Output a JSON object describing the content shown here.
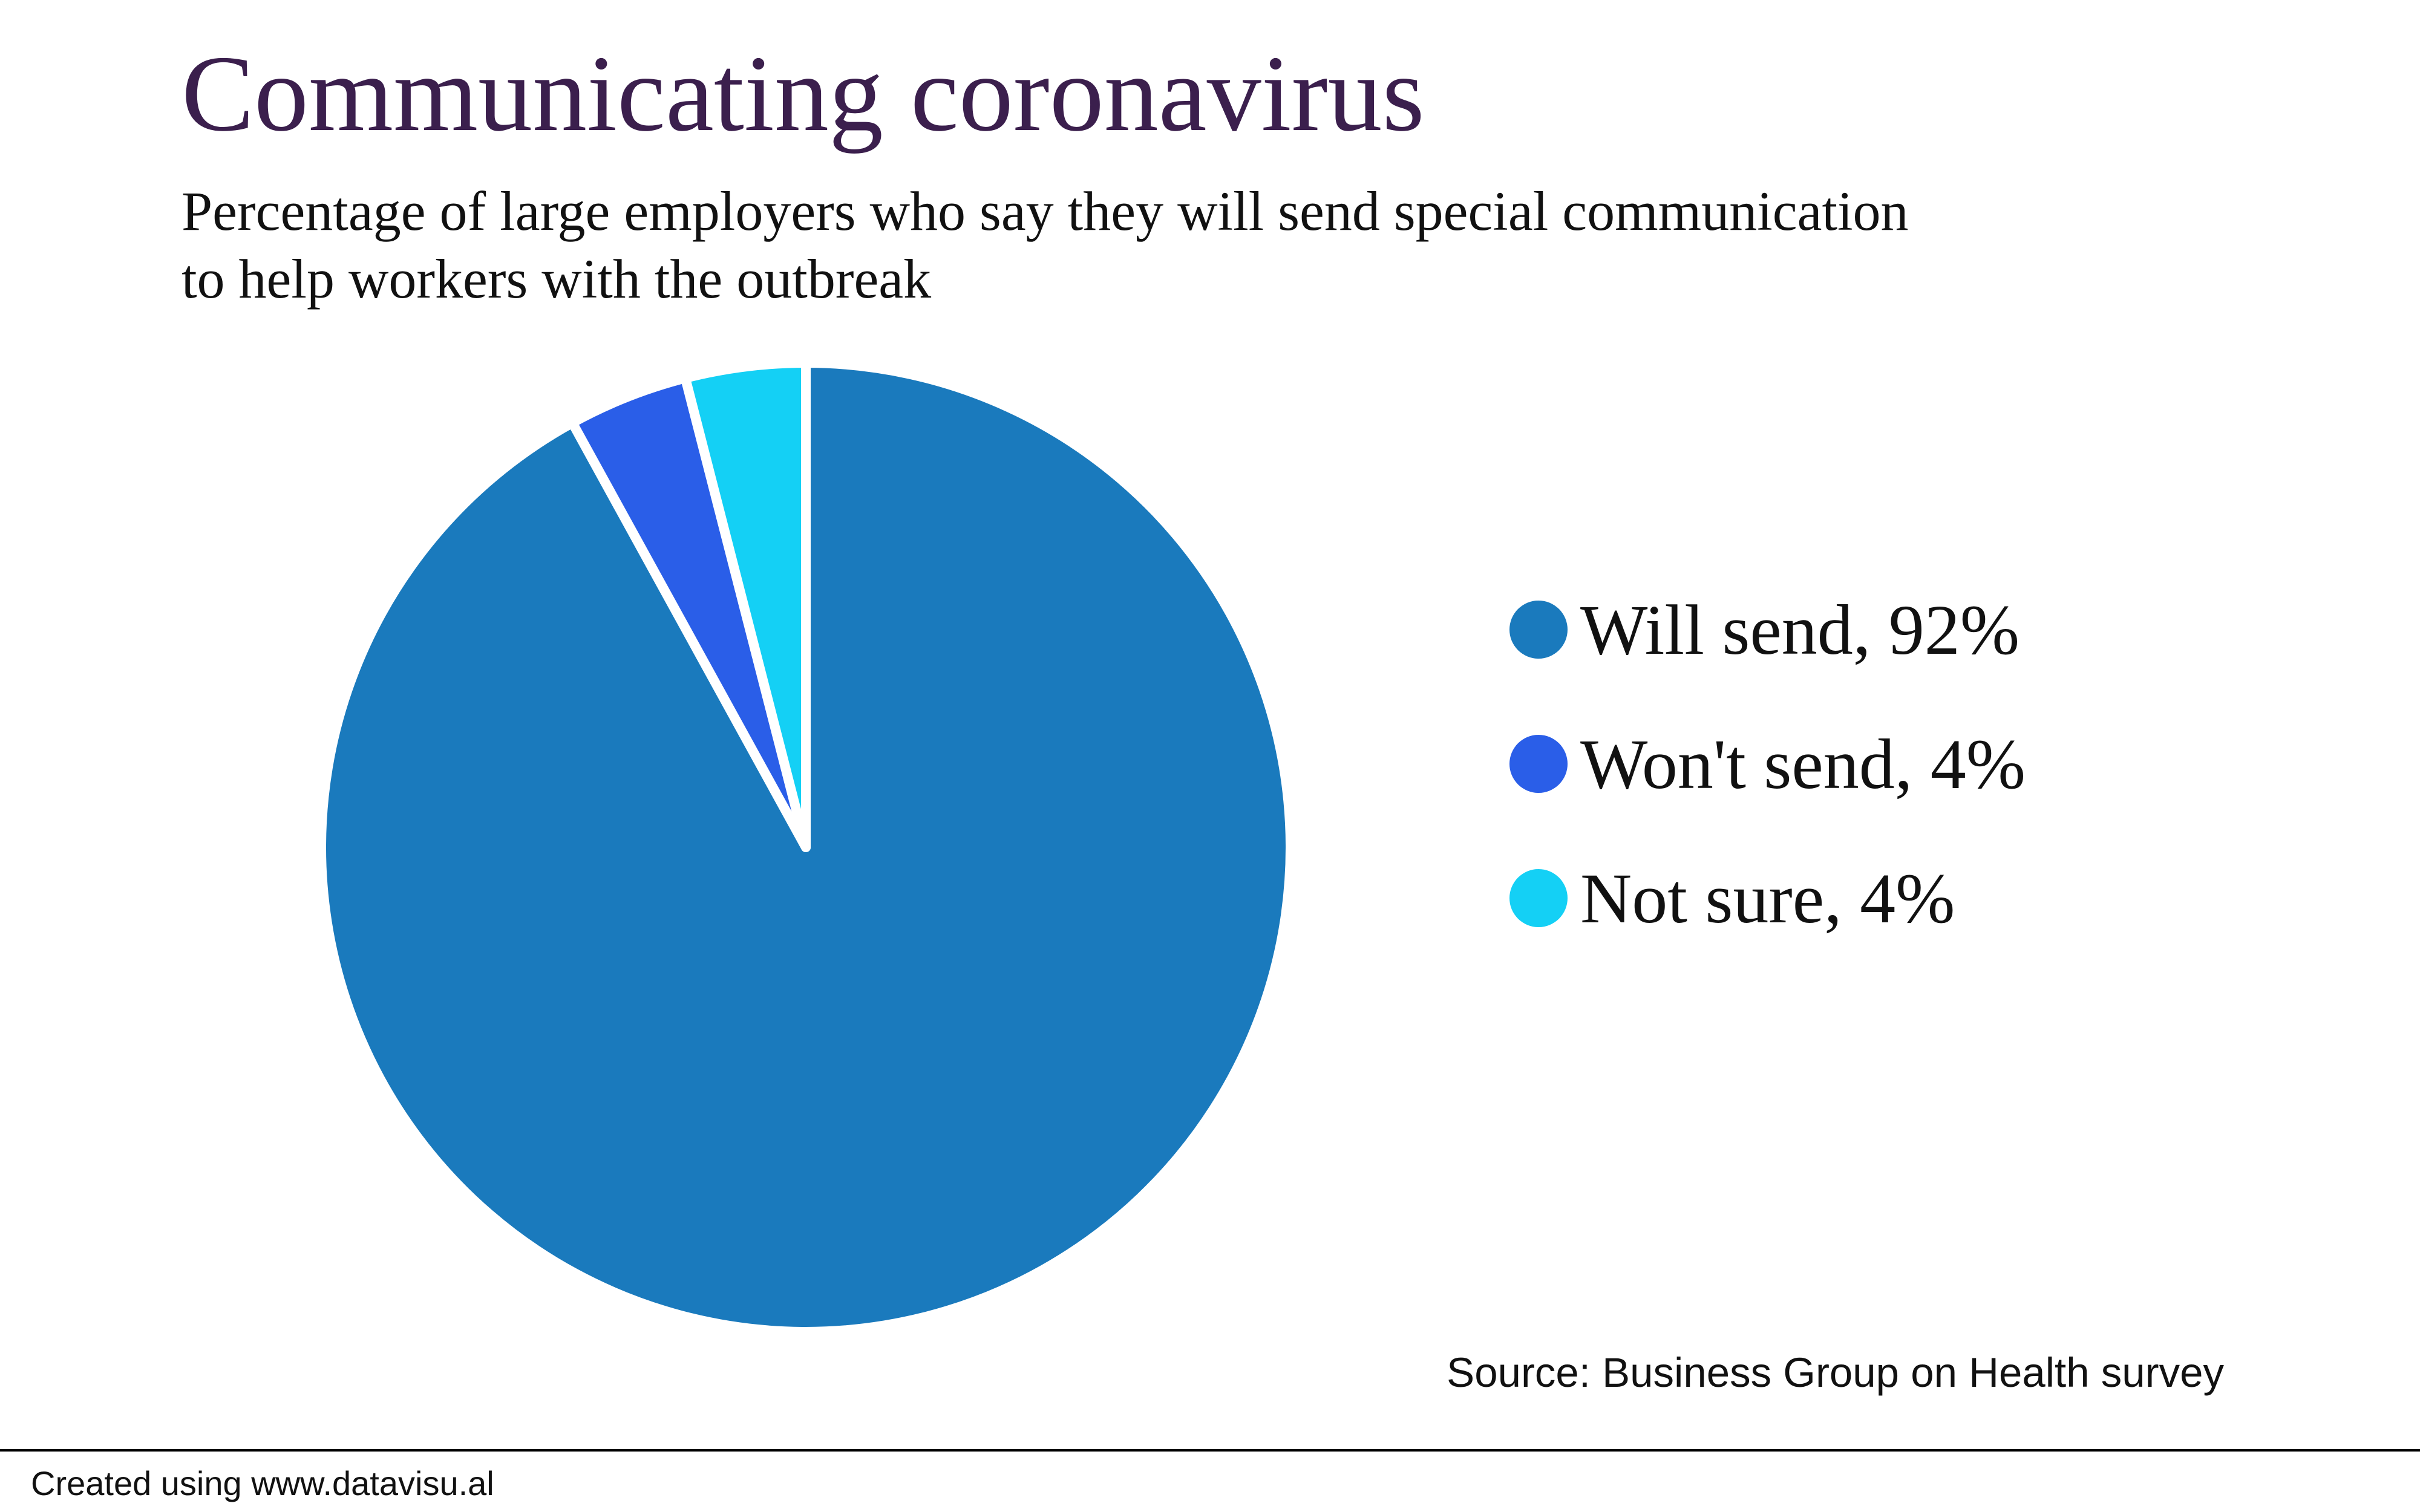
{
  "chart_data": {
    "type": "pie",
    "title": "Communicating coronavirus",
    "subtitle": [
      "Percentage of large employers who say they will send special communication",
      "to help workers with the outbreak"
    ],
    "categories": [
      "Will send, 92%",
      "Won't send, 4%",
      "Not sure, 4%"
    ],
    "values": [
      92,
      4,
      4
    ],
    "colors": [
      "#1a7abd",
      "#2a5ee8",
      "#14d0f5"
    ],
    "source": "Source: Business Group on Health survey",
    "footer": "Created using www.datavisu.al"
  }
}
